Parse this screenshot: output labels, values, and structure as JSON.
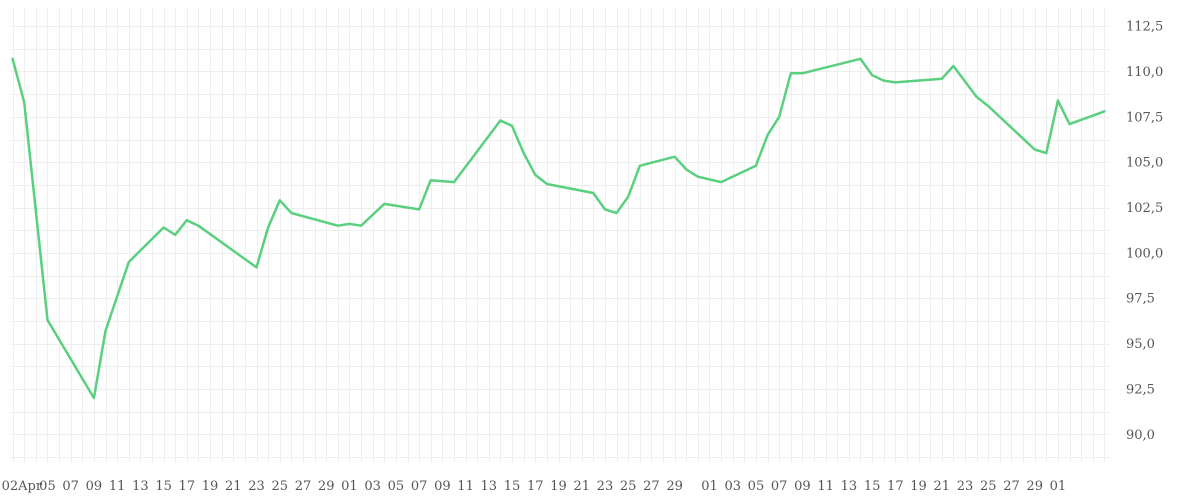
{
  "chart_data": {
    "type": "line",
    "title": "",
    "xlabel": "",
    "ylabel": "",
    "line_color": "#5ad07f",
    "grid": true,
    "ylim": [
      88.5,
      113.5
    ],
    "y_ticks": [
      "90,0",
      "92,5",
      "95,0",
      "97,5",
      "100,0",
      "102,5",
      "105,0",
      "107,5",
      "110,0",
      "112,5"
    ],
    "x_ticks": [
      "02Apr",
      "05",
      "07",
      "09",
      "11",
      "13",
      "15",
      "17",
      "19",
      "21",
      "23",
      "25",
      "27",
      "29",
      "01",
      "03",
      "05",
      "07",
      "09",
      "11",
      "13",
      "15",
      "17",
      "19",
      "21",
      "23",
      "25",
      "27",
      "29",
      "01",
      "03",
      "05",
      "07",
      "09",
      "11",
      "13",
      "15",
      "17",
      "19",
      "21",
      "23",
      "25",
      "27",
      "29",
      "01"
    ],
    "series": [
      {
        "points": [
          [
            "2025-04-02",
            110.7
          ],
          [
            "2025-04-03",
            108.3
          ],
          [
            "2025-04-05",
            96.3
          ],
          [
            "2025-04-09",
            92.0
          ],
          [
            "2025-04-10",
            95.7
          ],
          [
            "2025-04-12",
            99.5
          ],
          [
            "2025-04-15",
            101.4
          ],
          [
            "2025-04-16",
            101.0
          ],
          [
            "2025-04-17",
            101.8
          ],
          [
            "2025-04-18",
            101.5
          ],
          [
            "2025-04-23",
            99.2
          ],
          [
            "2025-04-24",
            101.4
          ],
          [
            "2025-04-25",
            102.9
          ],
          [
            "2025-04-26",
            102.2
          ],
          [
            "2025-04-30",
            101.5
          ],
          [
            "2025-05-01",
            101.6
          ],
          [
            "2025-05-02",
            101.5
          ],
          [
            "2025-05-04",
            102.7
          ],
          [
            "2025-05-07",
            102.4
          ],
          [
            "2025-05-08",
            104.0
          ],
          [
            "2025-05-10",
            103.9
          ],
          [
            "2025-05-14",
            107.3
          ],
          [
            "2025-05-15",
            107.0
          ],
          [
            "2025-05-16",
            105.5
          ],
          [
            "2025-05-17",
            104.3
          ],
          [
            "2025-05-18",
            103.8
          ],
          [
            "2025-05-22",
            103.3
          ],
          [
            "2025-05-23",
            102.4
          ],
          [
            "2025-05-24",
            102.2
          ],
          [
            "2025-05-25",
            103.1
          ],
          [
            "2025-05-26",
            104.8
          ],
          [
            "2025-05-29",
            105.3
          ],
          [
            "2025-05-30",
            104.6
          ],
          [
            "2025-05-31",
            104.2
          ],
          [
            "2025-06-02",
            103.9
          ],
          [
            "2025-06-05",
            104.8
          ],
          [
            "2025-06-06",
            106.5
          ],
          [
            "2025-06-07",
            107.5
          ],
          [
            "2025-06-08",
            109.9
          ],
          [
            "2025-06-09",
            109.9
          ],
          [
            "2025-06-14",
            110.7
          ],
          [
            "2025-06-15",
            109.8
          ],
          [
            "2025-06-16",
            109.5
          ],
          [
            "2025-06-17",
            109.4
          ],
          [
            "2025-06-21",
            109.6
          ],
          [
            "2025-06-22",
            110.3
          ],
          [
            "2025-06-24",
            108.6
          ],
          [
            "2025-06-25",
            108.1
          ],
          [
            "2025-06-29",
            105.7
          ],
          [
            "2025-06-30",
            105.5
          ],
          [
            "2025-07-01",
            108.4
          ],
          [
            "2025-07-02",
            107.1
          ],
          [
            "2025-07-05",
            107.8
          ]
        ]
      }
    ]
  }
}
